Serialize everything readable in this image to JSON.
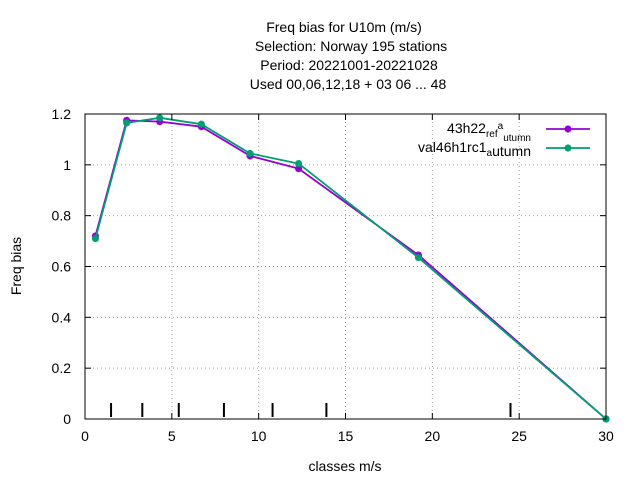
{
  "chart_data": {
    "type": "line",
    "title_lines": [
      "Freq bias  for U10m (m/s)",
      "Selection: Norway    195 stations",
      "Period: 20221001-20221028",
      "Used  00,06,12,18  + 03 06 ... 48"
    ],
    "xlabel": "classes m/s",
    "ylabel": "Freq bias",
    "xlim": [
      0,
      30
    ],
    "ylim": [
      0,
      1.2
    ],
    "xticks": [
      0,
      5,
      10,
      15,
      20,
      25,
      30
    ],
    "xtick_labels": [
      "0",
      "5",
      "10",
      "15",
      "20",
      "25",
      "30"
    ],
    "yticks": [
      0,
      0.2,
      0.4,
      0.6,
      0.8,
      1.0,
      1.2
    ],
    "ytick_labels": [
      "0",
      "0.2",
      "0.4",
      "0.6",
      "0.8",
      "1",
      "1.2"
    ],
    "grid": true,
    "legend_position": "top-right",
    "class_marks": [
      1.5,
      3.3,
      5.4,
      8.0,
      10.8,
      13.9,
      24.5
    ],
    "series": [
      {
        "name": "43h22_ref_autumn",
        "label_parts": {
          "a": "43h22",
          "b": "ref",
          "c": "a",
          "d": "utumn"
        },
        "color": "#9400d3",
        "x": [
          0.6,
          2.4,
          4.3,
          6.7,
          9.5,
          12.3,
          19.2,
          30.0
        ],
        "y": [
          0.72,
          1.175,
          1.17,
          1.15,
          1.035,
          0.985,
          0.645,
          0.0
        ]
      },
      {
        "name": "val46h1rc1_autumn",
        "label_parts": {
          "a": "val46h1rc1",
          "b": "",
          "c": "a",
          "d": "utumn"
        },
        "color": "#009e73",
        "x": [
          0.6,
          2.4,
          4.3,
          6.7,
          9.5,
          12.3,
          19.2,
          30.0
        ],
        "y": [
          0.71,
          1.165,
          1.185,
          1.16,
          1.045,
          1.005,
          0.635,
          0.0
        ]
      }
    ]
  }
}
